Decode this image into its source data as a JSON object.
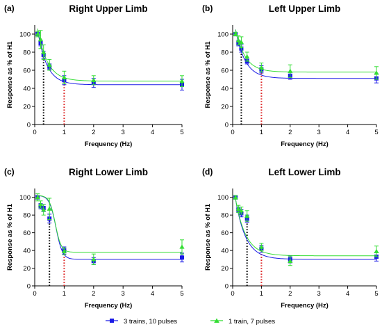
{
  "legend": {
    "items": [
      {
        "label": "3 trains, 10 pulses",
        "color": "#1a1ae6",
        "marker": "square"
      },
      {
        "label": "1 train, 7 pulses",
        "color": "#33dd33",
        "marker": "triangle"
      }
    ]
  },
  "chart_data": [
    {
      "type": "scatter",
      "panel_label": "(a)",
      "title": "Right Upper Limb",
      "xlabel": "Frequency (Hz)",
      "ylabel": "Response as % of H1",
      "xlim": [
        0,
        5
      ],
      "ylim": [
        0,
        110
      ],
      "xticks": [
        0,
        1,
        2,
        3,
        4,
        5
      ],
      "yticks": [
        0,
        20,
        40,
        60,
        80,
        100
      ],
      "vlines": [
        {
          "x": 0.3,
          "color": "#000000",
          "style": "dotted"
        },
        {
          "x": 1,
          "color": "#dd2222",
          "style": "dotted"
        }
      ],
      "series": [
        {
          "name": "3 trains, 10 pulses",
          "color": "#1a1ae6",
          "marker": "square",
          "x": [
            0.1,
            0.2,
            0.3,
            0.5,
            1,
            2,
            5
          ],
          "y": [
            100,
            90,
            77,
            64,
            49,
            46,
            44
          ],
          "err": [
            2,
            3,
            4,
            3,
            5,
            5,
            6
          ],
          "fit": {
            "plateau": 44,
            "span": 60,
            "k": 3.2
          }
        },
        {
          "name": "1 train, 7 pulses",
          "color": "#33dd33",
          "marker": "triangle",
          "x": [
            0.1,
            0.2,
            0.3,
            0.5,
            1,
            2,
            5
          ],
          "y": [
            100,
            94,
            80,
            66,
            52,
            49,
            48
          ],
          "err": [
            3,
            10,
            8,
            6,
            7,
            5,
            6
          ],
          "fit": {
            "plateau": 48,
            "span": 58,
            "k": 3.0
          }
        }
      ]
    },
    {
      "type": "scatter",
      "panel_label": "(b)",
      "title": "Left Upper Limb",
      "xlabel": "Frequency (Hz)",
      "ylabel": "Response as % of H1",
      "xlim": [
        0,
        5
      ],
      "ylim": [
        0,
        110
      ],
      "xticks": [
        0,
        1,
        2,
        3,
        4,
        5
      ],
      "yticks": [
        0,
        20,
        40,
        60,
        80,
        100
      ],
      "vlines": [
        {
          "x": 0.3,
          "color": "#000000",
          "style": "dotted"
        },
        {
          "x": 1,
          "color": "#dd2222",
          "style": "dotted"
        }
      ],
      "series": [
        {
          "name": "3 trains, 10 pulses",
          "color": "#1a1ae6",
          "marker": "square",
          "x": [
            0.1,
            0.2,
            0.3,
            0.5,
            1,
            2,
            5
          ],
          "y": [
            100,
            90,
            84,
            70,
            61,
            54,
            51
          ],
          "err": [
            2,
            3,
            4,
            3,
            4,
            4,
            5
          ],
          "fit": {
            "plateau": 51,
            "span": 54,
            "k": 3.0
          }
        },
        {
          "name": "1 train, 7 pulses",
          "color": "#33dd33",
          "marker": "triangle",
          "x": [
            0.1,
            0.2,
            0.3,
            0.5,
            1,
            2,
            5
          ],
          "y": [
            100,
            93,
            91,
            75,
            63,
            59,
            57
          ],
          "err": [
            2,
            5,
            6,
            5,
            5,
            7,
            7
          ],
          "fit": {
            "plateau": 58,
            "span": 47,
            "k": 3.0
          }
        }
      ]
    },
    {
      "type": "scatter",
      "panel_label": "(c)",
      "title": "Right Lower Limb",
      "xlabel": "Frequency (Hz)",
      "ylabel": "Response as % of H1",
      "xlim": [
        0,
        5
      ],
      "ylim": [
        0,
        110
      ],
      "xticks": [
        0,
        1,
        2,
        3,
        4,
        5
      ],
      "yticks": [
        0,
        20,
        40,
        60,
        80,
        100
      ],
      "vlines": [
        {
          "x": 0.5,
          "color": "#000000",
          "style": "dotted"
        },
        {
          "x": 1,
          "color": "#dd2222",
          "style": "dotted"
        }
      ],
      "series": [
        {
          "name": "3 trains, 10 pulses",
          "color": "#1a1ae6",
          "marker": "square",
          "x": [
            0.1,
            0.2,
            0.3,
            0.5,
            1,
            2,
            5
          ],
          "y": [
            100,
            90,
            88,
            76,
            40,
            28,
            32
          ],
          "err": [
            2,
            3,
            4,
            5,
            4,
            4,
            5
          ],
          "fit": {
            "plateau": 30,
            "span": 72,
            "dip": 0.72,
            "k": 9
          }
        },
        {
          "name": "1 train, 7 pulses",
          "color": "#33dd33",
          "marker": "triangle",
          "x": [
            0.1,
            0.2,
            0.3,
            0.5,
            1,
            2,
            5
          ],
          "y": [
            100,
            92,
            86,
            87,
            39,
            30,
            44
          ],
          "err": [
            4,
            4,
            6,
            12,
            4,
            6,
            8
          ],
          "fit": {
            "plateau": 38,
            "span": 64,
            "dip": 0.7,
            "k": 10
          }
        }
      ]
    },
    {
      "type": "scatter",
      "panel_label": "(d)",
      "title": "Left Lower Limb",
      "xlabel": "Frequency (Hz)",
      "ylabel": "Response as % of H1",
      "xlim": [
        0,
        5
      ],
      "ylim": [
        0,
        110
      ],
      "xticks": [
        0,
        1,
        2,
        3,
        4,
        5
      ],
      "yticks": [
        0,
        20,
        40,
        60,
        80,
        100
      ],
      "vlines": [
        {
          "x": 0.5,
          "color": "#000000",
          "style": "dotted"
        },
        {
          "x": 1,
          "color": "#dd2222",
          "style": "dotted"
        }
      ],
      "series": [
        {
          "name": "3 trains, 10 pulses",
          "color": "#1a1ae6",
          "marker": "square",
          "x": [
            0.1,
            0.2,
            0.3,
            0.5,
            1,
            2,
            5
          ],
          "y": [
            100,
            86,
            82,
            76,
            42,
            30,
            33
          ],
          "err": [
            2,
            3,
            4,
            4,
            4,
            4,
            5
          ],
          "fit": {
            "plateau": 30,
            "span": 68,
            "k": 2.8
          }
        },
        {
          "name": "1 train, 7 pulses",
          "color": "#33dd33",
          "marker": "triangle",
          "x": [
            0.1,
            0.2,
            0.3,
            0.5,
            1,
            2,
            5
          ],
          "y": [
            100,
            87,
            85,
            79,
            44,
            28,
            39
          ],
          "err": [
            2,
            4,
            4,
            6,
            4,
            5,
            6
          ],
          "fit": {
            "plateau": 34,
            "span": 64,
            "k": 2.8
          }
        }
      ]
    }
  ]
}
